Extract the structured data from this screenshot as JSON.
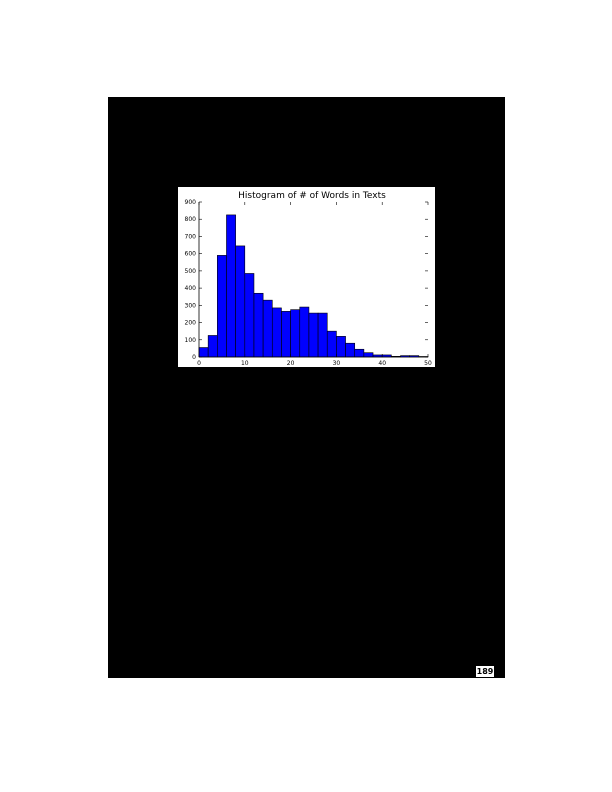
{
  "page_number": "189",
  "colors": {
    "background": "#ffffff",
    "panel": "#000000",
    "bar_fill": "#0000ff",
    "bar_edge": "#000000"
  },
  "chart_data": {
    "type": "bar",
    "title": "Histogram of # of Words in Texts",
    "xlabel": "",
    "ylabel": "",
    "xlim": [
      0,
      50
    ],
    "ylim": [
      0,
      900
    ],
    "xticks": [
      0,
      10,
      20,
      30,
      40,
      50
    ],
    "yticks": [
      0,
      100,
      200,
      300,
      400,
      500,
      600,
      700,
      800,
      900
    ],
    "grid": false,
    "bin_width": 2,
    "bin_edges": [
      0,
      2,
      4,
      6,
      8,
      10,
      12,
      14,
      16,
      18,
      20,
      22,
      24,
      26,
      28,
      30,
      32,
      34,
      36,
      38,
      40,
      42,
      44,
      46,
      48,
      50
    ],
    "values": [
      55,
      125,
      590,
      825,
      645,
      485,
      370,
      330,
      285,
      265,
      275,
      290,
      255,
      255,
      150,
      120,
      80,
      45,
      25,
      12,
      12,
      4,
      8,
      8,
      3
    ]
  }
}
